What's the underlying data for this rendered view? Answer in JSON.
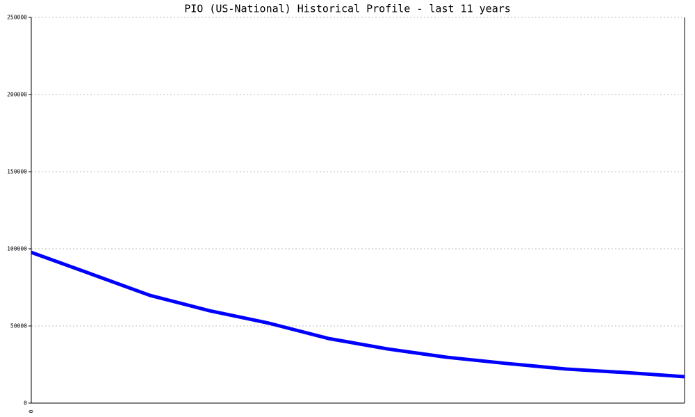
{
  "chart_data": {
    "type": "line",
    "title": "PIO (US-National) Historical Profile - last 11 years",
    "categories": [
      "0",
      null,
      null,
      null,
      null,
      null,
      null,
      null,
      null,
      null,
      null,
      null
    ],
    "series": [
      {
        "color": "#0000ff",
        "values": [
          97700,
          83800,
          69800,
          59900,
          51800,
          41900,
          35100,
          29700,
          25700,
          22100,
          19800,
          17100
        ]
      }
    ],
    "ylim": [
      0,
      250000
    ],
    "yticks": [
      0,
      50000,
      100000,
      150000,
      200000,
      250000
    ],
    "grid": true
  }
}
